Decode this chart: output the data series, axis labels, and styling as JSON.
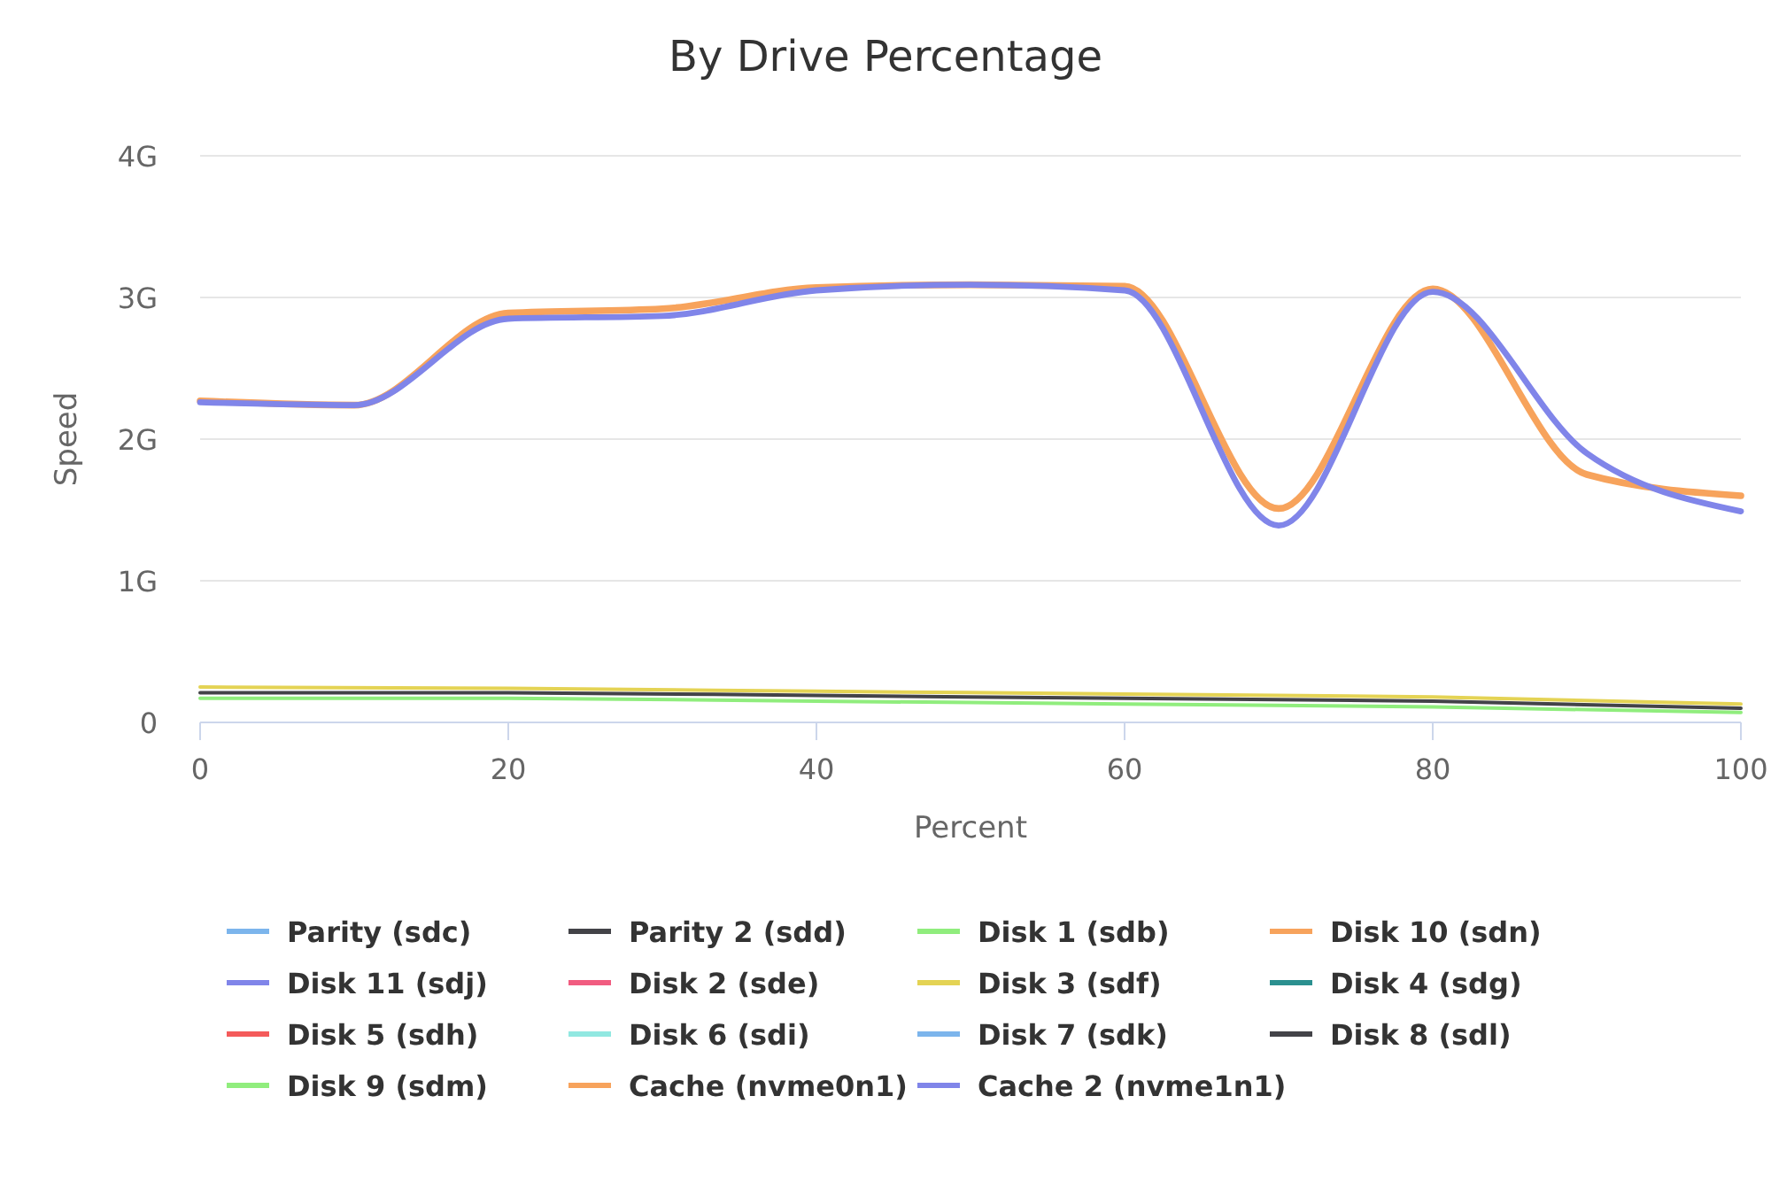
{
  "chart_data": {
    "type": "line",
    "title": "By Drive Percentage",
    "xlabel": "Percent",
    "ylabel": "Speed",
    "xlim": [
      0,
      100
    ],
    "xticks": [
      0,
      20,
      40,
      60,
      80,
      100
    ],
    "ylim": [
      0,
      4
    ],
    "yticks": [
      {
        "value": 0,
        "label": "0"
      },
      {
        "value": 1,
        "label": "1G"
      },
      {
        "value": 2,
        "label": "2G"
      },
      {
        "value": 3,
        "label": "3G"
      },
      {
        "value": 4,
        "label": "4G"
      }
    ],
    "grid": "y",
    "legend": "bottom",
    "marker": "none",
    "line_style": "solid",
    "series": [
      {
        "name": "Parity (sdc)",
        "color": "#7cb5ec"
      },
      {
        "name": "Parity 2 (sdd)",
        "color": "#434348",
        "x": [
          0,
          20,
          40,
          60,
          80,
          100
        ],
        "values": [
          0.21,
          0.21,
          0.19,
          0.17,
          0.15,
          0.1
        ]
      },
      {
        "name": "Disk 1 (sdb)",
        "color": "#90ed7d",
        "x": [
          0,
          20,
          40,
          60,
          80,
          100
        ],
        "values": [
          0.17,
          0.17,
          0.15,
          0.13,
          0.11,
          0.07
        ]
      },
      {
        "name": "Disk 10 (sdn)",
        "color": "#f7a35c"
      },
      {
        "name": "Disk 11 (sdj)",
        "color": "#8085e9"
      },
      {
        "name": "Disk 2 (sde)",
        "color": "#f15c80"
      },
      {
        "name": "Disk 3 (sdf)",
        "color": "#e4d354",
        "x": [
          0,
          20,
          40,
          60,
          80,
          100
        ],
        "values": [
          0.25,
          0.24,
          0.22,
          0.2,
          0.18,
          0.13
        ]
      },
      {
        "name": "Disk 4 (sdg)",
        "color": "#2b908f"
      },
      {
        "name": "Disk 5 (sdh)",
        "color": "#f45b5b"
      },
      {
        "name": "Disk 6 (sdi)",
        "color": "#91e8e1"
      },
      {
        "name": "Disk 7 (sdk)",
        "color": "#7cb5ec"
      },
      {
        "name": "Disk 8 (sdl)",
        "color": "#434348"
      },
      {
        "name": "Disk 9 (sdm)",
        "color": "#90ed7d"
      },
      {
        "name": "Cache (nvme0n1)",
        "color": "#f7a35c",
        "x": [
          0,
          10,
          20,
          30,
          40,
          50,
          60,
          70,
          80,
          90,
          100
        ],
        "values": [
          2.27,
          2.24,
          2.89,
          2.92,
          3.07,
          3.09,
          3.08,
          1.51,
          3.06,
          1.75,
          1.6
        ]
      },
      {
        "name": "Cache 2 (nvme1n1)",
        "color": "#8085e9",
        "x": [
          0,
          10,
          20,
          30,
          40,
          50,
          60,
          70,
          80,
          90,
          100
        ],
        "values": [
          2.26,
          2.24,
          2.85,
          2.87,
          3.05,
          3.09,
          3.05,
          1.39,
          3.04,
          1.9,
          1.49
        ]
      }
    ]
  }
}
